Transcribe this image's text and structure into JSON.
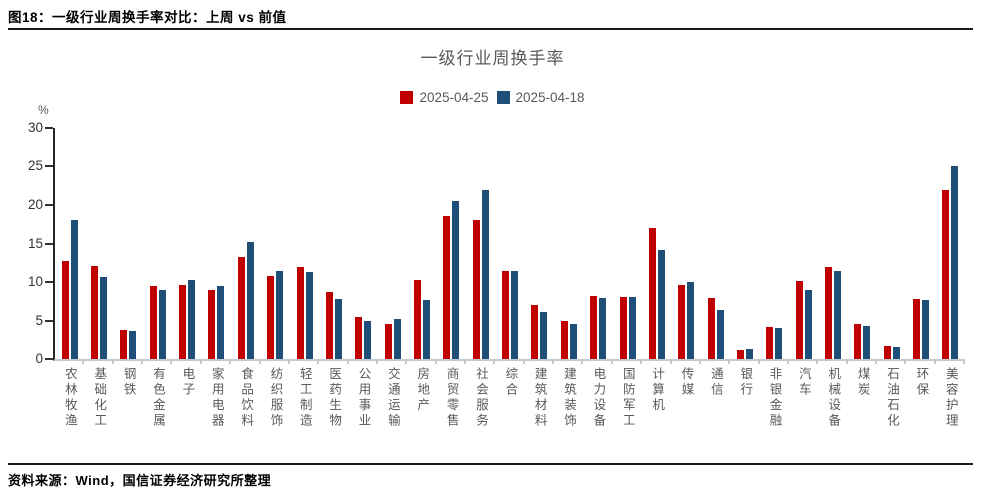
{
  "figure": {
    "title": "图18：一级行业周换手率对比：上周 vs 前值",
    "source": "资料来源：Wind，国信证券经济研究所整理"
  },
  "chart_data": {
    "type": "bar",
    "title": "一级行业周换手率",
    "ylabel": "%",
    "ylim": [
      0,
      30
    ],
    "yticks": [
      0,
      5,
      10,
      15,
      20,
      25,
      30
    ],
    "grid": false,
    "legend_position": "top-center",
    "categories": [
      "农林牧渔",
      "基础化工",
      "钢铁",
      "有色金属",
      "电子",
      "家用电器",
      "食品饮料",
      "纺织服饰",
      "轻工制造",
      "医药生物",
      "公用事业",
      "交通运输",
      "房地产",
      "商贸零售",
      "社会服务",
      "综合",
      "建筑材料",
      "建筑装饰",
      "电力设备",
      "国防军工",
      "计算机",
      "传媒",
      "通信",
      "银行",
      "非银金融",
      "汽车",
      "机械设备",
      "煤炭",
      "石油石化",
      "环保",
      "美容护理"
    ],
    "series": [
      {
        "name": "2025-04-25",
        "color": "#C00000",
        "values": [
          12.7,
          12.1,
          3.8,
          9.5,
          9.6,
          8.9,
          13.2,
          10.8,
          12.0,
          8.7,
          5.4,
          4.6,
          10.3,
          18.6,
          18.0,
          11.4,
          7.0,
          5.0,
          8.2,
          8.1,
          17.0,
          9.6,
          7.9,
          1.2,
          4.2,
          10.1,
          12.0,
          4.6,
          1.7,
          7.8,
          22.0
        ]
      },
      {
        "name": "2025-04-18",
        "color": "#1F4E79",
        "values": [
          18.1,
          10.6,
          3.7,
          9.0,
          10.3,
          9.5,
          15.2,
          11.4,
          11.3,
          7.8,
          5.0,
          5.2,
          7.7,
          20.5,
          22.0,
          11.4,
          6.1,
          4.6,
          7.9,
          8.1,
          14.2,
          10.0,
          6.4,
          1.3,
          4.0,
          8.9,
          11.4,
          4.3,
          1.6,
          7.7,
          25.1
        ]
      }
    ]
  },
  "colors": {
    "bar_red": "#C00000",
    "bar_blue": "#1F4E79",
    "axis_dark": "#262626",
    "axis_light": "#c3c9d1",
    "text_gray": "#595959",
    "rule_black": "#1a1a1a"
  }
}
